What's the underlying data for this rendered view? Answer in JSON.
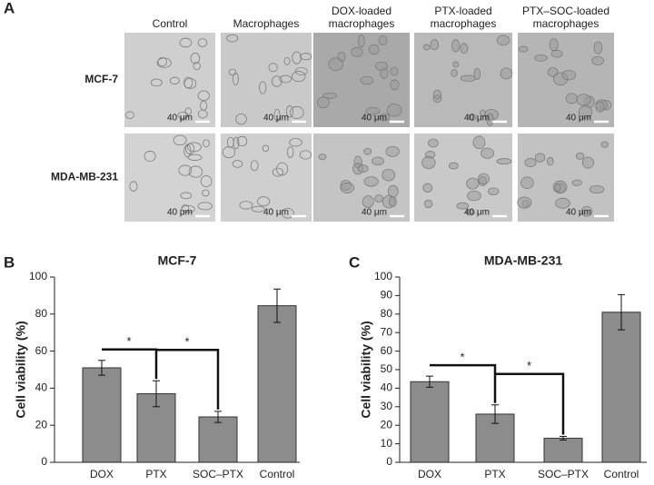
{
  "panel_labels": [
    "A",
    "B",
    "C"
  ],
  "micrographs": {
    "columns": [
      [
        "Control"
      ],
      [
        "Macrophages"
      ],
      [
        "DOX-loaded",
        "macrophages"
      ],
      [
        "PTX-loaded",
        "macrophages"
      ],
      [
        "PTX–SOC-loaded",
        "macrophages"
      ]
    ],
    "rows": [
      "MCF-7",
      "MDA-MB-231"
    ],
    "scale_bar": "40 μm"
  },
  "chart_data": [
    {
      "type": "bar",
      "title": "MCF-7",
      "y_label": "Cell viability (%)",
      "categories": [
        "DOX",
        "PTX",
        "SOC–PTX",
        "Control"
      ],
      "values": [
        51,
        37,
        24.5,
        84.5
      ],
      "errors": [
        4,
        7,
        3,
        9
      ],
      "color": "#8c8c8c",
      "ylim": [
        0,
        100
      ],
      "yticks": [
        0,
        20,
        40,
        60,
        80,
        100
      ],
      "annotations": [
        {
          "text": "*",
          "between": [
            "DOX",
            "PTX"
          ]
        },
        {
          "text": "*",
          "between": [
            "PTX",
            "SOC–PTX"
          ]
        }
      ]
    },
    {
      "type": "bar",
      "title": "MDA-MB-231",
      "y_label": "Cell viability (%)",
      "categories": [
        "DOX",
        "PTX",
        "SOC–PTX",
        "Control"
      ],
      "values": [
        43.5,
        26,
        13,
        81
      ],
      "errors": [
        3,
        5,
        1,
        9.5
      ],
      "color": "#8c8c8c",
      "ylim": [
        0,
        100
      ],
      "yticks": [
        0,
        10,
        20,
        30,
        40,
        50,
        60,
        70,
        80,
        90,
        100
      ],
      "annotations": [
        {
          "text": "*",
          "between": [
            "DOX",
            "PTX"
          ]
        },
        {
          "text": "*",
          "between": [
            "PTX",
            "SOC–PTX"
          ]
        }
      ]
    }
  ]
}
